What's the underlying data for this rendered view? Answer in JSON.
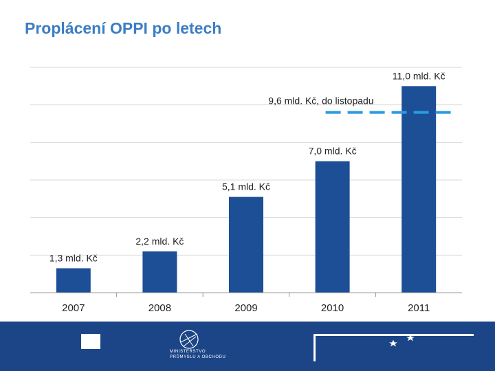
{
  "slide": {
    "title": "Proplácení OPPI po letech"
  },
  "chart_data": {
    "type": "bar",
    "categories": [
      "2007",
      "2008",
      "2009",
      "2010",
      "2011"
    ],
    "values": [
      1.3,
      2.2,
      5.1,
      7.0,
      11.0
    ],
    "data_labels": [
      "1,3 mld. Kč",
      "2,2 mld. Kč",
      "5,1 mld. Kč",
      "7,0 mld. Kč",
      "11,0 mld. Kč"
    ],
    "ylim": [
      0,
      12
    ],
    "grid": true,
    "bar_color": "#1c4f96",
    "reference_line": {
      "value": 9.6,
      "label": "9,6 mld. Kč, do listopadu",
      "color": "#2b9be0",
      "style": "dashed"
    }
  },
  "footer": {
    "ministry_line1": "MINISTERSTVO",
    "ministry_line2": "PRŮMYSLU A OBCHODU"
  },
  "colors": {
    "title": "#3b7dc4",
    "footer_bg": "#1c4587"
  }
}
